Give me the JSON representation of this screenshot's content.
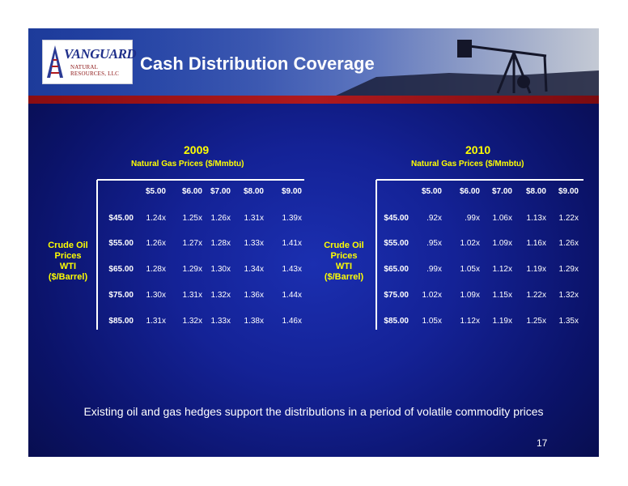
{
  "header": {
    "title": "Cash Distribution Coverage",
    "logo_name": "VANGUARD",
    "logo_subtitle": "NATURAL RESOURCES, LLC"
  },
  "tables": [
    {
      "year": "2009",
      "subtitle": "Natural Gas Prices  ($/Mmbtu)",
      "row_header": [
        "Crude Oil",
        "Prices",
        "WTI",
        "($/Barrel)"
      ],
      "columns": [
        "$5.00",
        "$6.00",
        "$7.00",
        "$8.00",
        "$9.00"
      ],
      "rows": [
        {
          "label": "$45.00",
          "values": [
            "1.24x",
            "1.25x",
            "1.26x",
            "1.31x",
            "1.39x"
          ]
        },
        {
          "label": "$55.00",
          "values": [
            "1.26x",
            "1.27x",
            "1.28x",
            "1.33x",
            "1.41x"
          ]
        },
        {
          "label": "$65.00",
          "values": [
            "1.28x",
            "1.29x",
            "1.30x",
            "1.34x",
            "1.43x"
          ]
        },
        {
          "label": "$75.00",
          "values": [
            "1.30x",
            "1.31x",
            "1.32x",
            "1.36x",
            "1.44x"
          ]
        },
        {
          "label": "$85.00",
          "values": [
            "1.31x",
            "1.32x",
            "1.33x",
            "1.38x",
            "1.46x"
          ]
        }
      ]
    },
    {
      "year": "2010",
      "subtitle": "Natural Gas Prices  ($/Mmbtu)",
      "row_header": [
        "Crude Oil",
        "Prices",
        "WTI",
        "($/Barrel)"
      ],
      "columns": [
        "$5.00",
        "$6.00",
        "$7.00",
        "$8.00",
        "$9.00"
      ],
      "rows": [
        {
          "label": "$45.00",
          "values": [
            ".92x",
            ".99x",
            "1.06x",
            "1.13x",
            "1.22x"
          ]
        },
        {
          "label": "$55.00",
          "values": [
            ".95x",
            "1.02x",
            "1.09x",
            "1.16x",
            "1.26x"
          ]
        },
        {
          "label": "$65.00",
          "values": [
            ".99x",
            "1.05x",
            "1.12x",
            "1.19x",
            "1.29x"
          ]
        },
        {
          "label": "$75.00",
          "values": [
            "1.02x",
            "1.09x",
            "1.15x",
            "1.22x",
            "1.32x"
          ]
        },
        {
          "label": "$85.00",
          "values": [
            "1.05x",
            "1.12x",
            "1.19x",
            "1.25x",
            "1.35x"
          ]
        }
      ]
    }
  ],
  "footer_text": "Existing oil and gas hedges support the distributions in a period of volatile commodity prices",
  "page_number": "17",
  "colors": {
    "accent_yellow": "#ffff00",
    "brand_red": "#b01a1e",
    "background_blue": "#142296"
  }
}
